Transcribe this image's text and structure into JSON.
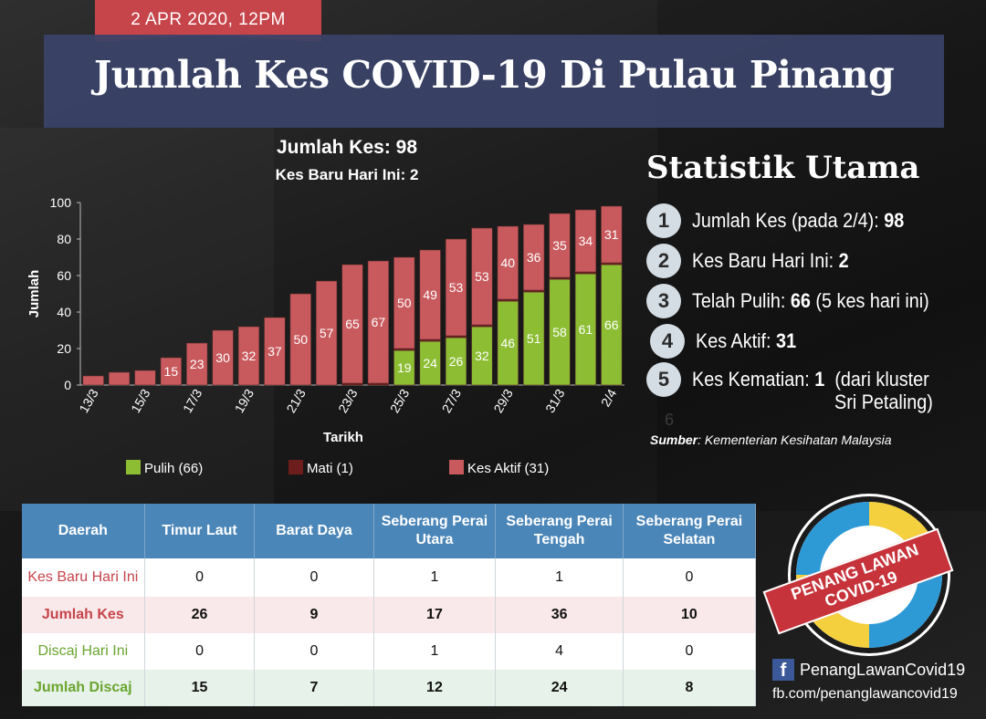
{
  "date_tag": "2 APR 2020, 12PM",
  "title": "Jumlah Kes COVID-19 Di Pulau Pinang",
  "totals": {
    "jumlah": "Jumlah Kes: 98",
    "baru": "Kes Baru Hari Ini: 2"
  },
  "colors": {
    "pulih": "#8cbd33",
    "mati": "#6e1d1d",
    "aktif": "#c85a5e",
    "accent": "#c6454b",
    "header": "#4b86b8"
  },
  "chart_data": {
    "type": "bar",
    "stacked": true,
    "xlabel": "Tarikh",
    "ylabel": "Jumlah",
    "ylim": [
      0,
      100
    ],
    "yticks": [
      0,
      20,
      40,
      60,
      80,
      100
    ],
    "categories": [
      "13/3",
      "14/3",
      "15/3",
      "16/3",
      "17/3",
      "18/3",
      "19/3",
      "20/3",
      "21/3",
      "22/3",
      "23/3",
      "24/3",
      "25/3",
      "26/3",
      "27/3",
      "28/3",
      "29/3",
      "30/3",
      "31/3",
      "1/4",
      "2/4"
    ],
    "xtick_labels": [
      "13/3",
      "15/3",
      "17/3",
      "19/3",
      "21/3",
      "23/3",
      "25/3",
      "27/3",
      "29/3",
      "31/3",
      "2/4"
    ],
    "series": [
      {
        "name": "Pulih (66)",
        "color": "#8cbd33",
        "values": [
          0,
          0,
          0,
          0,
          0,
          0,
          0,
          0,
          0,
          0,
          0,
          0,
          19,
          24,
          26,
          32,
          46,
          51,
          58,
          61,
          66
        ],
        "labels": [
          "",
          "",
          "",
          "",
          "",
          "",
          "",
          "",
          "",
          "",
          "",
          "",
          "19",
          "24",
          "26",
          "32",
          "46",
          "51",
          "58",
          "61",
          "66"
        ]
      },
      {
        "name": "Mati (1)",
        "color": "#6e1d1d",
        "values": [
          0,
          0,
          0,
          0,
          0,
          0,
          0,
          0,
          0,
          0,
          1,
          1,
          1,
          1,
          1,
          1,
          1,
          1,
          1,
          1,
          1
        ],
        "labels": [
          "",
          "",
          "",
          "",
          "",
          "",
          "",
          "",
          "",
          "",
          "",
          "",
          "",
          "",
          "",
          "",
          "",
          "",
          "",
          "",
          ""
        ]
      },
      {
        "name": "Kes Aktif (31)",
        "color": "#c85a5e",
        "values": [
          5,
          7,
          8,
          15,
          23,
          30,
          32,
          37,
          50,
          57,
          65,
          67,
          50,
          49,
          53,
          53,
          40,
          36,
          35,
          34,
          31
        ],
        "labels": [
          "",
          "",
          "",
          "15",
          "23",
          "30",
          "32",
          "37",
          "50",
          "57",
          "65",
          "67",
          "50",
          "49",
          "53",
          "53",
          "40",
          "36",
          "35",
          "34",
          "31"
        ]
      }
    ],
    "legend_position": "bottom"
  },
  "stats": {
    "title": "Statistik Utama",
    "items": [
      {
        "num": "1",
        "label": "Jumlah Kes (pada 2/4):",
        "value": "98",
        "extra": ""
      },
      {
        "num": "2",
        "label": "Kes Baru Hari Ini:",
        "value": "2",
        "extra": ""
      },
      {
        "num": "3",
        "label": "Telah Pulih:",
        "value": "66",
        "extra": "(5 kes hari ini)"
      },
      {
        "num": "4",
        "label": "Kes Aktif:",
        "value": "31",
        "extra": ""
      },
      {
        "num": "5",
        "label": "Kes Kematian:",
        "value": "1",
        "extra": "(dari kluster"
      }
    ],
    "item5_line2": "Sri Petaling)",
    "faded_num": "6",
    "source_label": "Sumber",
    "source_text": ": Kementerian Kesihatan Malaysia"
  },
  "table": {
    "headers": [
      "Daerah",
      "Timur Laut",
      "Barat Daya",
      "Seberang Perai Utara",
      "Seberang Perai Tengah",
      "Seberang Perai Selatan"
    ],
    "rows": [
      {
        "label": "Kes Baru Hari Ini",
        "values": [
          "0",
          "0",
          "1",
          "1",
          "0"
        ]
      },
      {
        "label": "Jumlah Kes",
        "values": [
          "26",
          "9",
          "17",
          "36",
          "10"
        ]
      },
      {
        "label": "Discaj Hari Ini",
        "values": [
          "0",
          "0",
          "1",
          "4",
          "0"
        ]
      },
      {
        "label": "Jumlah Discaj",
        "values": [
          "15",
          "7",
          "12",
          "24",
          "8"
        ]
      }
    ]
  },
  "logo": {
    "line1": "PENANG LAWAN",
    "line2": "COVID-19"
  },
  "social": {
    "fb_icon": "f",
    "page_name": "PenangLawanCovid19",
    "url": "fb.com/penanglawancovid19"
  }
}
